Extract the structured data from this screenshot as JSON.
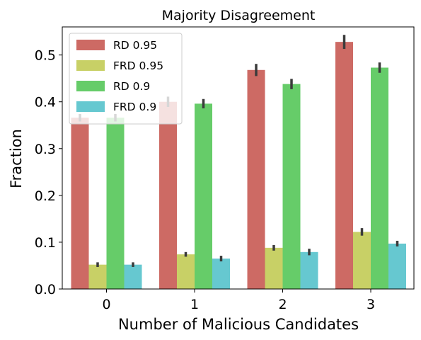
{
  "chart_data": {
    "type": "bar",
    "title": "Majority Disagreement",
    "xlabel": "Number of Malicious Candidates",
    "ylabel": "Fraction",
    "categories": [
      "0",
      "1",
      "2",
      "3"
    ],
    "ylim": [
      0,
      0.56
    ],
    "yticks": [
      0.0,
      0.1,
      0.2,
      0.3,
      0.4,
      0.5
    ],
    "ytick_labels": [
      "0.0",
      "0.1",
      "0.2",
      "0.3",
      "0.4",
      "0.5"
    ],
    "grid": false,
    "legend_position": "top-left",
    "series": [
      {
        "name": "RD 0.95",
        "color": "#cd6a64",
        "values": [
          0.366,
          0.4,
          0.468,
          0.528
        ],
        "err": [
          0.008,
          0.011,
          0.013,
          0.015
        ]
      },
      {
        "name": "FRD 0.95",
        "color": "#c8d066",
        "values": [
          0.052,
          0.074,
          0.088,
          0.122
        ],
        "err": [
          0.005,
          0.005,
          0.006,
          0.008
        ]
      },
      {
        "name": "RD 0.9",
        "color": "#66cc69",
        "values": [
          0.366,
          0.396,
          0.438,
          0.473
        ],
        "err": [
          0.008,
          0.01,
          0.011,
          0.011
        ]
      },
      {
        "name": "FRD 0.9",
        "color": "#66c8d0",
        "values": [
          0.052,
          0.065,
          0.079,
          0.097
        ],
        "err": [
          0.005,
          0.006,
          0.007,
          0.006
        ]
      }
    ]
  }
}
